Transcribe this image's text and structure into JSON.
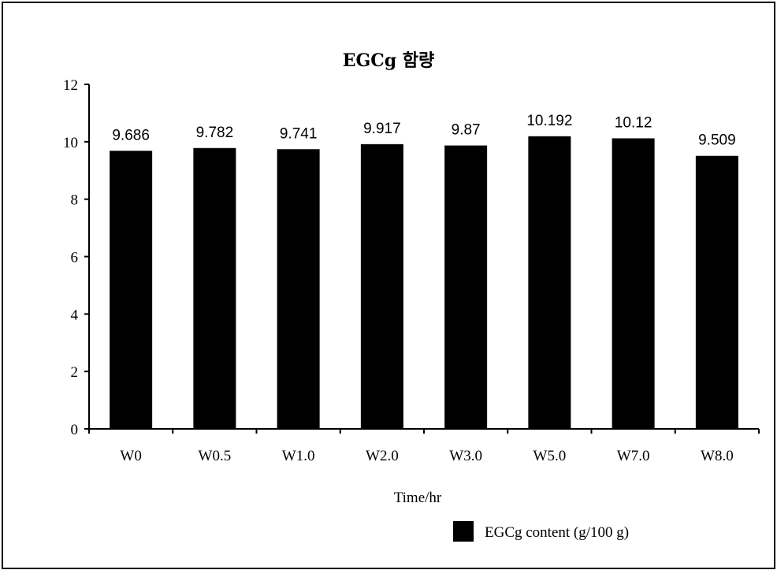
{
  "chart_data": {
    "type": "bar",
    "title": "EGCg 함량",
    "xlabel": "Time/hr",
    "ylabel": "",
    "categories": [
      "W0",
      "W0.5",
      "W1.0",
      "W2.0",
      "W3.0",
      "W5.0",
      "W7.0",
      "W8.0"
    ],
    "series": [
      {
        "name": "EGCg content (g/100 g)",
        "values": [
          9.686,
          9.782,
          9.741,
          9.917,
          9.87,
          10.192,
          10.12,
          9.509
        ],
        "value_labels": [
          "9.686",
          "9.782",
          "9.741",
          "9.917",
          "9.87",
          "10.192",
          "10.12",
          "9.509"
        ],
        "color": "#000000"
      }
    ],
    "ylim": [
      0,
      12
    ],
    "yticks": [
      0,
      2,
      4,
      6,
      8,
      10,
      12
    ],
    "grid": false,
    "legend_position": "bottom-right"
  }
}
